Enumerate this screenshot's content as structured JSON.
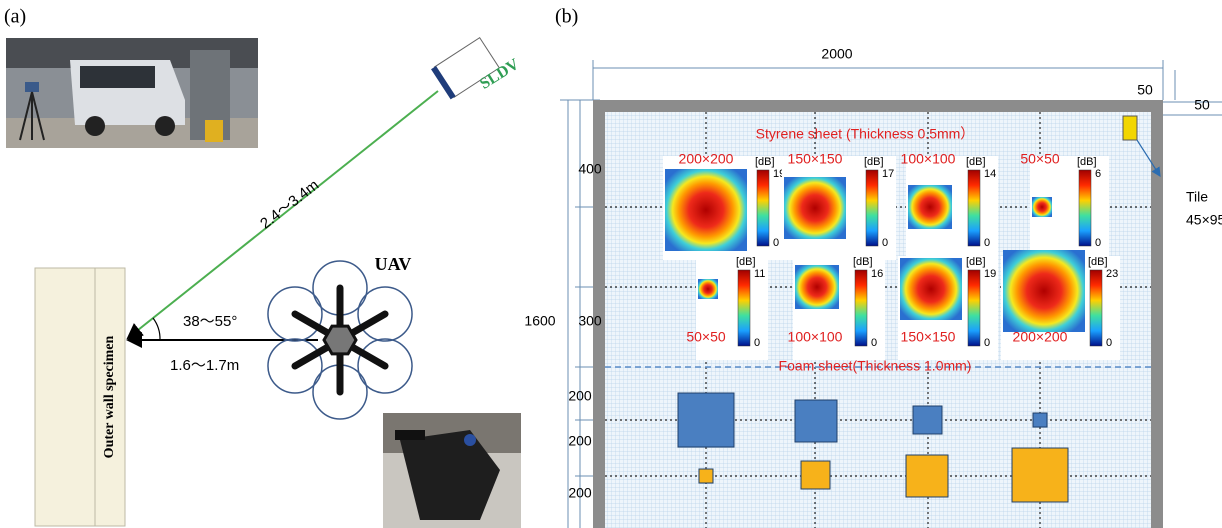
{
  "panel_a": {
    "label": "(a)",
    "device": "SLDV",
    "distance_diagonal": "2.4～3.4m",
    "vehicle": "UAV",
    "angle": "38～55°",
    "distance_horizontal": "1.6～1.7m",
    "specimen": "Outer wall specimen"
  },
  "panel_b": {
    "label": "(b)",
    "width": "2000",
    "height": "1600",
    "margin_x": "50",
    "margin_y": "50",
    "row_spacing": [
      "400",
      "300",
      "200",
      "200",
      "200"
    ],
    "styrene_label": "Styrene sheet (Thickness 0.5mm）",
    "foam_label": "Foam sheet(Thickness 1.0mm)",
    "tile": [
      "Tile",
      "45×95"
    ],
    "heatmaps": [
      {
        "size": "200×200",
        "unit": "[dB]",
        "max": "19",
        "min": "0"
      },
      {
        "size": "150×150",
        "unit": "[dB]",
        "max": "17",
        "min": "0"
      },
      {
        "size": "100×100",
        "unit": "[dB]",
        "max": "14",
        "min": "0"
      },
      {
        "size": "50×50",
        "unit": "[dB]",
        "max": "6",
        "min": "0"
      },
      {
        "size": "50×50",
        "unit": "[dB]",
        "max": "11",
        "min": "0"
      },
      {
        "size": "100×100",
        "unit": "[dB]",
        "max": "16",
        "min": "0"
      },
      {
        "size": "150×150",
        "unit": "[dB]",
        "max": "19",
        "min": "0"
      },
      {
        "size": "200×200",
        "unit": "[dB]",
        "max": "23",
        "min": "0"
      }
    ]
  }
}
